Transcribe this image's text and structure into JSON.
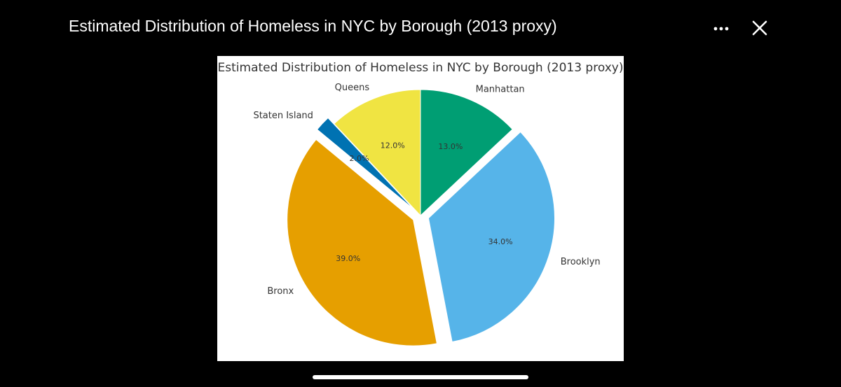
{
  "viewer": {
    "title": "Estimated Distribution of Homeless in NYC by Borough (2013 proxy)",
    "more_icon": "ellipsis-icon",
    "close_icon": "close-icon"
  },
  "chart_data": {
    "type": "pie",
    "title": "Estimated Distribution of Homeless in NYC by Borough (2013 proxy)",
    "categories": [
      "Manhattan",
      "Brooklyn",
      "Bronx",
      "Staten Island",
      "Queens"
    ],
    "values": [
      13.0,
      34.0,
      39.0,
      2.0,
      12.0
    ],
    "value_labels": [
      "13.0%",
      "34.0%",
      "39.0%",
      "2.0%",
      "12.0%"
    ],
    "colors": [
      "#009e73",
      "#56b4e9",
      "#e69f00",
      "#0072b2",
      "#f0e442"
    ],
    "exploded": [
      false,
      true,
      true,
      true,
      false
    ],
    "start_angle_deg": 90,
    "direction": "clockwise",
    "legend": "none"
  }
}
